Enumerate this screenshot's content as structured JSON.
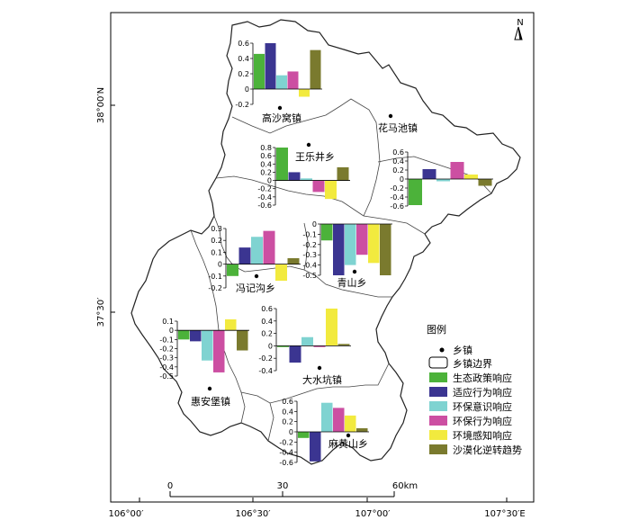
{
  "map": {
    "north_label": "N",
    "lat_labels": [
      "38°00′N",
      "37°30′"
    ],
    "lon_labels": [
      "106°00′",
      "106°30′",
      "107°00′",
      "107°30′E"
    ],
    "scale_ticks": [
      "0",
      "30",
      "60km"
    ]
  },
  "series_colors": [
    "#4cb23a",
    "#3b3591",
    "#7fd3d1",
    "#cc4fa2",
    "#f2ea3e",
    "#7a7a2e"
  ],
  "legend": {
    "title": "图例",
    "town_label": "乡镇",
    "boundary_label": "乡镇边界",
    "series": [
      "生态政策响应",
      "适应行为响应",
      "环保意识响应",
      "环保行为响应",
      "环境感知响应",
      "沙漠化逆转趋势"
    ]
  },
  "chart_data": [
    {
      "type": "bar",
      "name": "高沙窝镇",
      "values": [
        0.46,
        0.6,
        0.18,
        0.23,
        -0.1,
        0.51
      ],
      "ylim": [
        -0.2,
        0.6
      ],
      "ticks": [
        "0.6",
        "0.4",
        "0.2",
        "0",
        "-0.2"
      ]
    },
    {
      "type": "bar",
      "name": "花马池镇",
      "values": [
        -0.58,
        0.22,
        -0.05,
        0.38,
        0.1,
        -0.15
      ],
      "ylim": [
        -0.6,
        0.6
      ],
      "ticks": [
        "0.6",
        "0.4",
        "0.2",
        "0",
        "-0.2",
        "-0.4",
        "-0.6"
      ]
    },
    {
      "type": "bar",
      "name": "王乐井乡",
      "values": [
        0.8,
        0.2,
        0.05,
        -0.28,
        -0.45,
        0.32
      ],
      "ylim": [
        -0.6,
        0.8
      ],
      "ticks": [
        "0.8",
        "0.6",
        "0.4",
        "0.2",
        "0",
        "-0.2",
        "-0.4",
        "-0.6"
      ]
    },
    {
      "type": "bar",
      "name": "冯记沟乡",
      "values": [
        -0.1,
        0.14,
        0.23,
        0.28,
        -0.14,
        0.05
      ],
      "ylim": [
        -0.2,
        0.3
      ],
      "ticks": [
        "0.3",
        "0.2",
        "0.1",
        "0",
        "-0.1",
        "-0.2"
      ]
    },
    {
      "type": "bar",
      "name": "青山乡",
      "values": [
        -0.16,
        -0.5,
        -0.4,
        -0.3,
        -0.38,
        -0.5
      ],
      "ylim": [
        -0.5,
        0
      ],
      "ticks": [
        "0",
        "-0.1",
        "-0.2",
        "-0.3",
        "-0.4",
        "-0.5"
      ]
    },
    {
      "type": "bar",
      "name": "惠安堡镇",
      "values": [
        -0.1,
        -0.12,
        -0.33,
        -0.46,
        0.12,
        -0.22
      ],
      "ylim": [
        -0.5,
        0.1
      ],
      "ticks": [
        "0.1",
        "0",
        "-0.1",
        "-0.2",
        "-0.3",
        "-0.4",
        "-0.5"
      ]
    },
    {
      "type": "bar",
      "name": "大水坑镇",
      "values": [
        -0.02,
        -0.27,
        0.14,
        -0.02,
        0.6,
        0.03
      ],
      "ylim": [
        -0.4,
        0.6
      ],
      "ticks": [
        "0.6",
        "0.4",
        "0.2",
        "0",
        "-0.2",
        "-0.4"
      ]
    },
    {
      "type": "bar",
      "name": "麻黄山乡",
      "values": [
        -0.12,
        -0.58,
        0.57,
        0.47,
        0.32,
        0.07
      ],
      "ylim": [
        -0.6,
        0.6
      ],
      "ticks": [
        "0.6",
        "0.4",
        "0.2",
        "0",
        "-0.2",
        "-0.4",
        "-0.6"
      ]
    }
  ]
}
